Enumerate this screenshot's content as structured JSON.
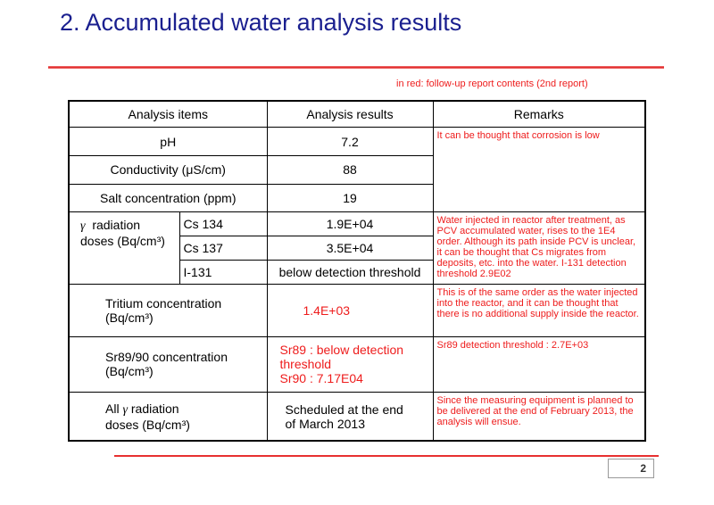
{
  "slide": {
    "title": "2. Accumulated water analysis results",
    "note": "in red: follow-up report contents (2nd report)",
    "page_number": "2"
  },
  "table": {
    "headers": [
      "Analysis items",
      "Analysis results",
      "Remarks"
    ],
    "ph": {
      "label": "pH",
      "value": "7.2"
    },
    "conductivity": {
      "label": "Conductivity (μS/cm)",
      "value": "88"
    },
    "salt": {
      "label": "Salt concentration (ppm)",
      "value": "19"
    },
    "corrosion_remark": "It can be thought that corrosion is low",
    "gamma": {
      "symbol": "γ",
      "label_line1": "radiation",
      "label_line2": "doses (Bq/cm³)",
      "rows": [
        {
          "nuclide": "Cs 134",
          "value": "1.9E+04"
        },
        {
          "nuclide": "Cs 137",
          "value": "3.5E+04"
        },
        {
          "nuclide": "I-131",
          "value": "below detection threshold"
        }
      ],
      "remark": "Water injected in reactor after treatment, as PCV accumulated water, rises to the 1E4 order. Although its path inside PCV is unclear, it can be thought that Cs migrates from deposits, etc. into the water. I-131 detection threshold 2.9E02"
    },
    "tritium": {
      "label_line1": "Tritium concentration",
      "label_line2": "(Bq/cm³)",
      "value": "1.4E+03",
      "remark": "This is of the same order as the water injected into the reactor, and it can be thought that there is no additional supply inside the reactor."
    },
    "sr": {
      "label_line1": "Sr89/90 concentration",
      "label_line2": "(Bq/cm³)",
      "value_line1": "Sr89 : below detection",
      "value_line2": "threshold",
      "value_line3": "Sr90 : 7.17E04",
      "remark": "Sr89 detection threshold : 2.7E+03"
    },
    "all_gamma": {
      "label_prefix": "All",
      "label_symbol": "γ",
      "label_line1_rest": "radiation",
      "label_line2": "doses (Bq/cm³)",
      "value_line1": "Scheduled at the end",
      "value_line2": "of March 2013",
      "remark": "Since the measuring equipment is planned to be delivered at the end of February 2013, the analysis will ensue."
    }
  },
  "colors": {
    "title": "#1a1f8f",
    "accent_red": "#ee1c1c",
    "rule_red": "#e83030"
  }
}
